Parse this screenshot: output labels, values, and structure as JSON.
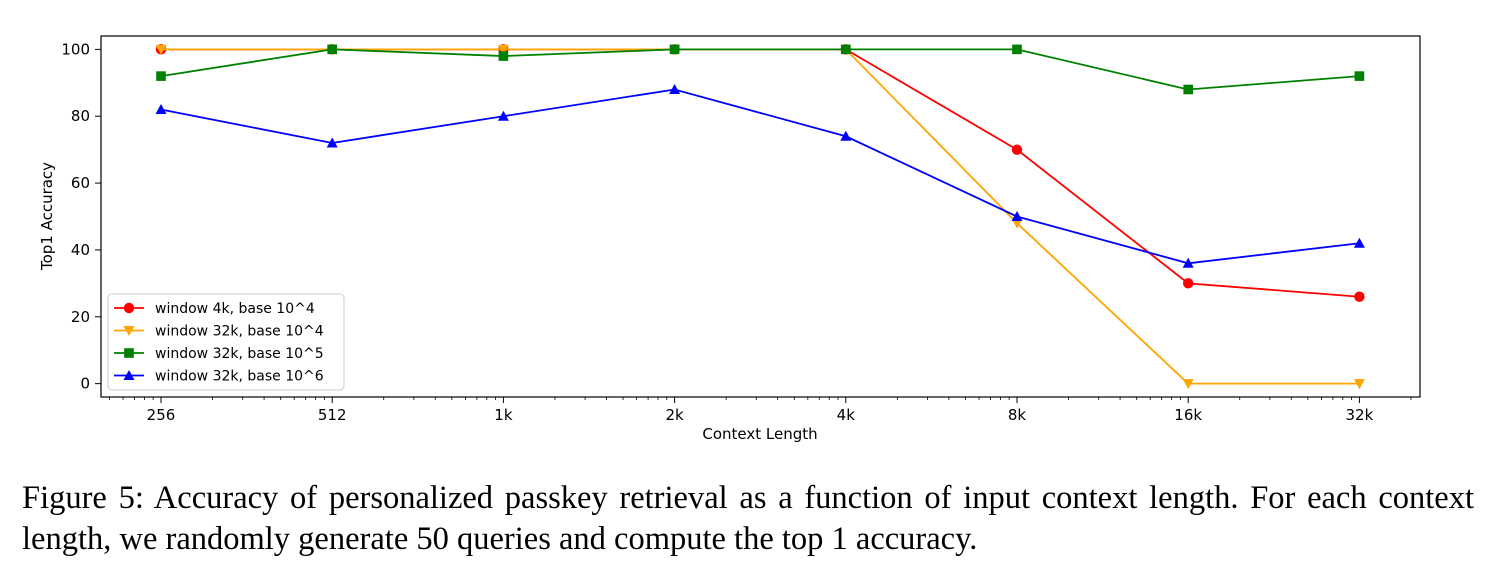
{
  "chart_data": {
    "type": "line",
    "categories": [
      "256",
      "512",
      "1k",
      "2k",
      "4k",
      "8k",
      "16k",
      "32k"
    ],
    "xlabel": "Context Length",
    "ylabel": "Top1 Accuracy",
    "ylim": [
      -4,
      104
    ],
    "yticks": [
      0,
      20,
      40,
      60,
      80,
      100
    ],
    "x_scale": "log2",
    "grid": false,
    "legend_position": "lower-left",
    "series": [
      {
        "name": "window 4k, base 10^4",
        "color": "#ff0000",
        "marker": "circle",
        "values": [
          100,
          100,
          100,
          100,
          100,
          70,
          30,
          26
        ]
      },
      {
        "name": "window 32k, base 10^4",
        "color": "#ffa500",
        "marker": "triangle-down",
        "values": [
          100,
          100,
          100,
          100,
          100,
          48,
          0,
          0
        ]
      },
      {
        "name": "window 32k, base 10^5",
        "color": "#008000",
        "marker": "square",
        "values": [
          92,
          100,
          98,
          100,
          100,
          100,
          88,
          92
        ]
      },
      {
        "name": "window 32k, base 10^6",
        "color": "#0000ff",
        "marker": "triangle-up",
        "values": [
          82,
          72,
          80,
          88,
          74,
          50,
          36,
          42
        ]
      }
    ]
  },
  "caption": "Figure 5: Accuracy of personalized passkey retrieval as a function of input context length. For each context length, we randomly generate 50 queries and compute the top 1 accuracy."
}
